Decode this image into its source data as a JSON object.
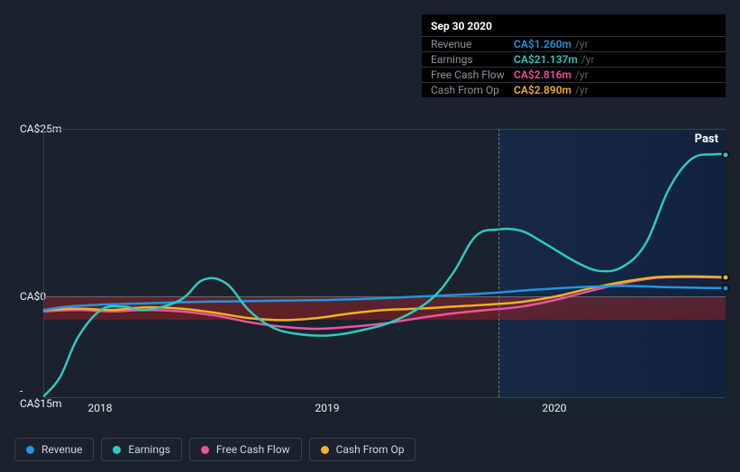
{
  "colors": {
    "revenue": "#2394df",
    "earnings": "#32c8c0",
    "free_cash_flow": "#eb53a0",
    "cash_from_op": "#eeb224",
    "background": "#1b222d",
    "grid": "#3a414c",
    "text": "#eef2f5",
    "muted": "#8d939c",
    "unit": "#5a6069",
    "red_band_top": "rgba(200,40,40,0.35)",
    "red_band_bottom": "rgba(150,30,30,0.55)"
  },
  "chart": {
    "type": "line",
    "ylim": [
      -15,
      25
    ],
    "yticks": [
      -15,
      0,
      25
    ],
    "ytick_labels": [
      "-CA$15m",
      "CA$0",
      "CA$25m"
    ],
    "x_start": 2017.75,
    "x_end": 2020.75,
    "xticks": [
      2018,
      2019,
      2020
    ],
    "xtick_labels": [
      "2018",
      "2019",
      "2020"
    ],
    "hover_x": 2019.75,
    "past_label": "Past",
    "line_width": 2.5,
    "red_band": {
      "from": 0,
      "to": -3.5
    }
  },
  "tooltip": {
    "header": "Sep 30 2020",
    "rows": [
      {
        "label": "Revenue",
        "value": "CA$1.260m",
        "unit": "/yr",
        "color_key": "revenue"
      },
      {
        "label": "Earnings",
        "value": "CA$21.137m",
        "unit": "/yr",
        "color_key": "earnings"
      },
      {
        "label": "Free Cash Flow",
        "value": "CA$2.816m",
        "unit": "/yr",
        "color_key": "free_cash_flow"
      },
      {
        "label": "Cash From Op",
        "value": "CA$2.890m",
        "unit": "/yr",
        "color_key": "cash_from_op"
      }
    ]
  },
  "legend": [
    {
      "label": "Revenue",
      "color_key": "revenue"
    },
    {
      "label": "Earnings",
      "color_key": "earnings"
    },
    {
      "label": "Free Cash Flow",
      "color_key": "free_cash_flow"
    },
    {
      "label": "Cash From Op",
      "color_key": "cash_from_op"
    }
  ],
  "series": {
    "revenue": [
      [
        2017.75,
        -2.0
      ],
      [
        2017.85,
        -1.5
      ],
      [
        2018.0,
        -1.2
      ],
      [
        2018.2,
        -1.0
      ],
      [
        2018.4,
        -0.8
      ],
      [
        2018.6,
        -0.7
      ],
      [
        2018.8,
        -0.6
      ],
      [
        2019.0,
        -0.5
      ],
      [
        2019.2,
        -0.3
      ],
      [
        2019.4,
        0.0
      ],
      [
        2019.6,
        0.3
      ],
      [
        2019.75,
        0.6
      ],
      [
        2019.9,
        1.0
      ],
      [
        2020.1,
        1.4
      ],
      [
        2020.3,
        1.6
      ],
      [
        2020.5,
        1.4
      ],
      [
        2020.65,
        1.3
      ],
      [
        2020.75,
        1.26
      ]
    ],
    "earnings": [
      [
        2017.75,
        -14.8
      ],
      [
        2017.82,
        -12.0
      ],
      [
        2017.9,
        -6.0
      ],
      [
        2018.0,
        -2.0
      ],
      [
        2018.1,
        -1.5
      ],
      [
        2018.2,
        -2.0
      ],
      [
        2018.35,
        -0.5
      ],
      [
        2018.45,
        2.5
      ],
      [
        2018.55,
        2.0
      ],
      [
        2018.65,
        -2.0
      ],
      [
        2018.75,
        -4.5
      ],
      [
        2018.85,
        -5.5
      ],
      [
        2019.0,
        -5.8
      ],
      [
        2019.15,
        -5.0
      ],
      [
        2019.3,
        -3.5
      ],
      [
        2019.45,
        -0.5
      ],
      [
        2019.55,
        3.5
      ],
      [
        2019.65,
        9.0
      ],
      [
        2019.75,
        10.0
      ],
      [
        2019.85,
        9.8
      ],
      [
        2019.95,
        8.0
      ],
      [
        2020.1,
        5.0
      ],
      [
        2020.2,
        3.8
      ],
      [
        2020.3,
        4.5
      ],
      [
        2020.4,
        8.0
      ],
      [
        2020.5,
        16.0
      ],
      [
        2020.6,
        20.5
      ],
      [
        2020.7,
        21.2
      ],
      [
        2020.75,
        21.137
      ]
    ],
    "free_cash_flow": [
      [
        2017.75,
        -2.2
      ],
      [
        2017.9,
        -2.0
      ],
      [
        2018.05,
        -2.2
      ],
      [
        2018.2,
        -2.0
      ],
      [
        2018.35,
        -2.2
      ],
      [
        2018.5,
        -2.8
      ],
      [
        2018.65,
        -3.8
      ],
      [
        2018.8,
        -4.5
      ],
      [
        2018.95,
        -4.8
      ],
      [
        2019.1,
        -4.5
      ],
      [
        2019.25,
        -4.0
      ],
      [
        2019.4,
        -3.2
      ],
      [
        2019.55,
        -2.5
      ],
      [
        2019.7,
        -2.0
      ],
      [
        2019.85,
        -1.5
      ],
      [
        2020.0,
        -0.5
      ],
      [
        2020.15,
        0.8
      ],
      [
        2020.3,
        2.0
      ],
      [
        2020.45,
        2.8
      ],
      [
        2020.6,
        2.9
      ],
      [
        2020.75,
        2.816
      ]
    ],
    "cash_from_op": [
      [
        2017.75,
        -2.0
      ],
      [
        2017.9,
        -1.8
      ],
      [
        2018.05,
        -2.0
      ],
      [
        2018.2,
        -1.6
      ],
      [
        2018.35,
        -1.8
      ],
      [
        2018.5,
        -2.4
      ],
      [
        2018.65,
        -3.2
      ],
      [
        2018.8,
        -3.5
      ],
      [
        2018.95,
        -3.2
      ],
      [
        2019.1,
        -2.5
      ],
      [
        2019.25,
        -2.0
      ],
      [
        2019.4,
        -1.8
      ],
      [
        2019.55,
        -1.5
      ],
      [
        2019.7,
        -1.2
      ],
      [
        2019.85,
        -0.8
      ],
      [
        2020.0,
        0.0
      ],
      [
        2020.15,
        1.2
      ],
      [
        2020.3,
        2.2
      ],
      [
        2020.45,
        2.9
      ],
      [
        2020.6,
        3.0
      ],
      [
        2020.75,
        2.89
      ]
    ]
  }
}
